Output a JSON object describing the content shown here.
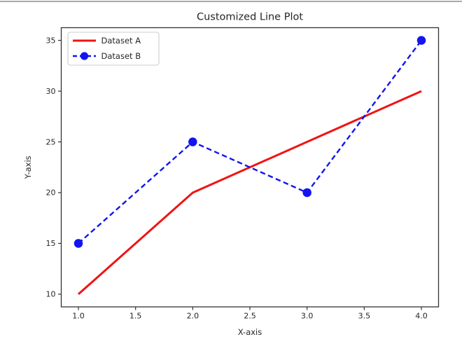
{
  "window": {
    "background": "#ffffff",
    "top_border_color": "#a9a9a9"
  },
  "chart_data": {
    "type": "line",
    "title": "Customized Line Plot",
    "xlabel": "X-axis",
    "ylabel": "Y-axis",
    "x": [
      1,
      2,
      3,
      4
    ],
    "series": [
      {
        "name": "Dataset A",
        "values": [
          10,
          20,
          25,
          30
        ],
        "color": "#f01414",
        "line_style": "solid",
        "line_width": 3,
        "marker": "none",
        "marker_size": 0
      },
      {
        "name": "Dataset B",
        "values": [
          15,
          25,
          20,
          35
        ],
        "color": "#1414f0",
        "line_style": "dashed",
        "line_width": 2.4,
        "marker": "circle",
        "marker_size": 12.5
      }
    ],
    "xlim": [
      0.85,
      4.15
    ],
    "ylim": [
      8.75,
      36.25
    ],
    "xticks": [
      1.0,
      1.5,
      2.0,
      2.5,
      3.0,
      3.5,
      4.0
    ],
    "xtick_labels": [
      "1.0",
      "1.5",
      "2.0",
      "2.5",
      "3.0",
      "3.5",
      "4.0"
    ],
    "yticks": [
      10,
      15,
      20,
      25,
      30,
      35
    ],
    "ytick_labels": [
      "10",
      "15",
      "20",
      "25",
      "30",
      "35"
    ],
    "grid": false,
    "legend": {
      "position": "upper left",
      "entries": [
        "Dataset A",
        "Dataset B"
      ],
      "border_color": "#cccccc",
      "background": "#ffffff"
    },
    "axis_color": "#333333",
    "text_color": "#262626",
    "plot_background": "#ffffff"
  }
}
